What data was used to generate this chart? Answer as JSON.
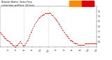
{
  "title": "Milwaukee Weather  Outdoor Temperature  vs Heat Index  per Minute  (24 Hours)",
  "bg_color": "#ffffff",
  "plot_bg": "#ffffff",
  "dot_color": "#dd0000",
  "legend_orange": "#ff8800",
  "legend_red": "#dd0000",
  "ylim_min": 60,
  "ylim_max": 100,
  "yticks": [
    65,
    70,
    75,
    80,
    85,
    90,
    95
  ],
  "vline_positions": [
    360,
    720
  ],
  "vline_color": "#aaaaaa",
  "x_max": 1440,
  "xtick_positions": [
    0,
    120,
    240,
    360,
    480,
    600,
    720,
    840,
    960,
    1080,
    1200,
    1320,
    1440
  ],
  "xtick_labels": [
    "12a",
    "2a",
    "4a",
    "6a",
    "8a",
    "10a",
    "12p",
    "2p",
    "4p",
    "6p",
    "8p",
    "10p",
    "12a"
  ],
  "temp_data": [
    [
      0,
      74
    ],
    [
      6,
      74
    ],
    [
      12,
      73
    ],
    [
      18,
      73
    ],
    [
      24,
      73
    ],
    [
      30,
      72
    ],
    [
      36,
      72
    ],
    [
      42,
      71
    ],
    [
      48,
      71
    ],
    [
      54,
      70
    ],
    [
      60,
      70
    ],
    [
      66,
      69
    ],
    [
      72,
      69
    ],
    [
      78,
      68
    ],
    [
      84,
      68
    ],
    [
      90,
      68
    ],
    [
      96,
      67
    ],
    [
      102,
      67
    ],
    [
      108,
      67
    ],
    [
      114,
      66
    ],
    [
      120,
      66
    ],
    [
      126,
      66
    ],
    [
      132,
      65
    ],
    [
      138,
      65
    ],
    [
      144,
      65
    ],
    [
      150,
      64
    ],
    [
      156,
      64
    ],
    [
      162,
      63
    ],
    [
      168,
      63
    ],
    [
      174,
      63
    ],
    [
      180,
      62
    ],
    [
      186,
      62
    ],
    [
      192,
      62
    ],
    [
      198,
      61
    ],
    [
      204,
      61
    ],
    [
      210,
      61
    ],
    [
      216,
      60
    ],
    [
      222,
      60
    ],
    [
      228,
      60
    ],
    [
      234,
      61
    ],
    [
      240,
      61
    ],
    [
      246,
      61
    ],
    [
      252,
      62
    ],
    [
      258,
      62
    ],
    [
      264,
      62
    ],
    [
      270,
      63
    ],
    [
      276,
      63
    ],
    [
      282,
      64
    ],
    [
      288,
      64
    ],
    [
      294,
      65
    ],
    [
      300,
      65
    ],
    [
      306,
      65
    ],
    [
      312,
      64
    ],
    [
      318,
      64
    ],
    [
      324,
      63
    ],
    [
      330,
      62
    ],
    [
      336,
      62
    ],
    [
      342,
      61
    ],
    [
      348,
      61
    ],
    [
      354,
      61
    ],
    [
      360,
      61
    ],
    [
      366,
      62
    ],
    [
      372,
      62
    ],
    [
      378,
      63
    ],
    [
      384,
      64
    ],
    [
      390,
      64
    ],
    [
      396,
      65
    ],
    [
      402,
      66
    ],
    [
      408,
      67
    ],
    [
      414,
      67
    ],
    [
      420,
      68
    ],
    [
      426,
      69
    ],
    [
      432,
      70
    ],
    [
      438,
      71
    ],
    [
      444,
      72
    ],
    [
      450,
      73
    ],
    [
      456,
      74
    ],
    [
      462,
      75
    ],
    [
      468,
      75
    ],
    [
      474,
      76
    ],
    [
      480,
      77
    ],
    [
      486,
      78
    ],
    [
      492,
      79
    ],
    [
      498,
      80
    ],
    [
      504,
      80
    ],
    [
      510,
      81
    ],
    [
      516,
      82
    ],
    [
      522,
      83
    ],
    [
      528,
      83
    ],
    [
      534,
      84
    ],
    [
      540,
      85
    ],
    [
      546,
      85
    ],
    [
      552,
      86
    ],
    [
      558,
      86
    ],
    [
      564,
      87
    ],
    [
      570,
      87
    ],
    [
      576,
      88
    ],
    [
      582,
      88
    ],
    [
      588,
      89
    ],
    [
      594,
      89
    ],
    [
      600,
      89
    ],
    [
      606,
      90
    ],
    [
      612,
      90
    ],
    [
      618,
      90
    ],
    [
      624,
      91
    ],
    [
      630,
      91
    ],
    [
      636,
      91
    ],
    [
      642,
      92
    ],
    [
      648,
      92
    ],
    [
      654,
      92
    ],
    [
      660,
      92
    ],
    [
      666,
      93
    ],
    [
      672,
      93
    ],
    [
      678,
      93
    ],
    [
      684,
      93
    ],
    [
      690,
      93
    ],
    [
      696,
      93
    ],
    [
      702,
      93
    ],
    [
      708,
      93
    ],
    [
      714,
      93
    ],
    [
      720,
      93
    ],
    [
      726,
      93
    ],
    [
      732,
      93
    ],
    [
      738,
      93
    ],
    [
      744,
      94
    ],
    [
      750,
      93
    ],
    [
      756,
      93
    ],
    [
      762,
      92
    ],
    [
      768,
      92
    ],
    [
      774,
      91
    ],
    [
      780,
      91
    ],
    [
      786,
      91
    ],
    [
      792,
      90
    ],
    [
      798,
      90
    ],
    [
      804,
      89
    ],
    [
      810,
      89
    ],
    [
      816,
      88
    ],
    [
      822,
      88
    ],
    [
      828,
      87
    ],
    [
      834,
      87
    ],
    [
      840,
      86
    ],
    [
      846,
      86
    ],
    [
      852,
      85
    ],
    [
      858,
      85
    ],
    [
      864,
      84
    ],
    [
      870,
      83
    ],
    [
      876,
      83
    ],
    [
      882,
      82
    ],
    [
      888,
      82
    ],
    [
      894,
      81
    ],
    [
      900,
      80
    ],
    [
      906,
      80
    ],
    [
      912,
      79
    ],
    [
      918,
      78
    ],
    [
      924,
      78
    ],
    [
      930,
      77
    ],
    [
      936,
      76
    ],
    [
      942,
      76
    ],
    [
      948,
      75
    ],
    [
      954,
      75
    ],
    [
      960,
      74
    ],
    [
      966,
      74
    ],
    [
      972,
      73
    ],
    [
      978,
      73
    ],
    [
      984,
      72
    ],
    [
      990,
      72
    ],
    [
      996,
      71
    ],
    [
      1002,
      71
    ],
    [
      1008,
      70
    ],
    [
      1014,
      70
    ],
    [
      1020,
      69
    ],
    [
      1026,
      69
    ],
    [
      1032,
      68
    ],
    [
      1038,
      68
    ],
    [
      1044,
      67
    ],
    [
      1050,
      67
    ],
    [
      1056,
      67
    ],
    [
      1062,
      66
    ],
    [
      1068,
      66
    ],
    [
      1074,
      66
    ],
    [
      1080,
      65
    ],
    [
      1086,
      65
    ],
    [
      1092,
      65
    ],
    [
      1098,
      64
    ],
    [
      1104,
      64
    ],
    [
      1110,
      64
    ],
    [
      1116,
      64
    ],
    [
      1122,
      63
    ],
    [
      1128,
      63
    ],
    [
      1134,
      63
    ],
    [
      1140,
      63
    ],
    [
      1146,
      63
    ],
    [
      1152,
      63
    ],
    [
      1158,
      62
    ],
    [
      1164,
      62
    ],
    [
      1170,
      62
    ],
    [
      1176,
      62
    ],
    [
      1182,
      62
    ],
    [
      1188,
      62
    ],
    [
      1194,
      62
    ],
    [
      1200,
      62
    ],
    [
      1206,
      62
    ],
    [
      1212,
      62
    ],
    [
      1218,
      62
    ],
    [
      1224,
      62
    ],
    [
      1230,
      62
    ],
    [
      1236,
      62
    ],
    [
      1242,
      62
    ],
    [
      1248,
      62
    ],
    [
      1254,
      62
    ],
    [
      1260,
      62
    ],
    [
      1266,
      63
    ],
    [
      1272,
      63
    ],
    [
      1278,
      63
    ],
    [
      1284,
      63
    ],
    [
      1290,
      63
    ],
    [
      1296,
      63
    ],
    [
      1302,
      63
    ],
    [
      1308,
      63
    ],
    [
      1314,
      63
    ],
    [
      1320,
      63
    ],
    [
      1326,
      63
    ],
    [
      1332,
      63
    ],
    [
      1338,
      63
    ],
    [
      1344,
      63
    ],
    [
      1350,
      63
    ],
    [
      1356,
      63
    ],
    [
      1362,
      63
    ],
    [
      1368,
      63
    ],
    [
      1374,
      63
    ],
    [
      1380,
      63
    ],
    [
      1386,
      63
    ],
    [
      1392,
      63
    ],
    [
      1398,
      63
    ],
    [
      1404,
      63
    ],
    [
      1410,
      63
    ],
    [
      1416,
      63
    ],
    [
      1422,
      63
    ],
    [
      1428,
      63
    ],
    [
      1434,
      63
    ],
    [
      1440,
      63
    ]
  ]
}
